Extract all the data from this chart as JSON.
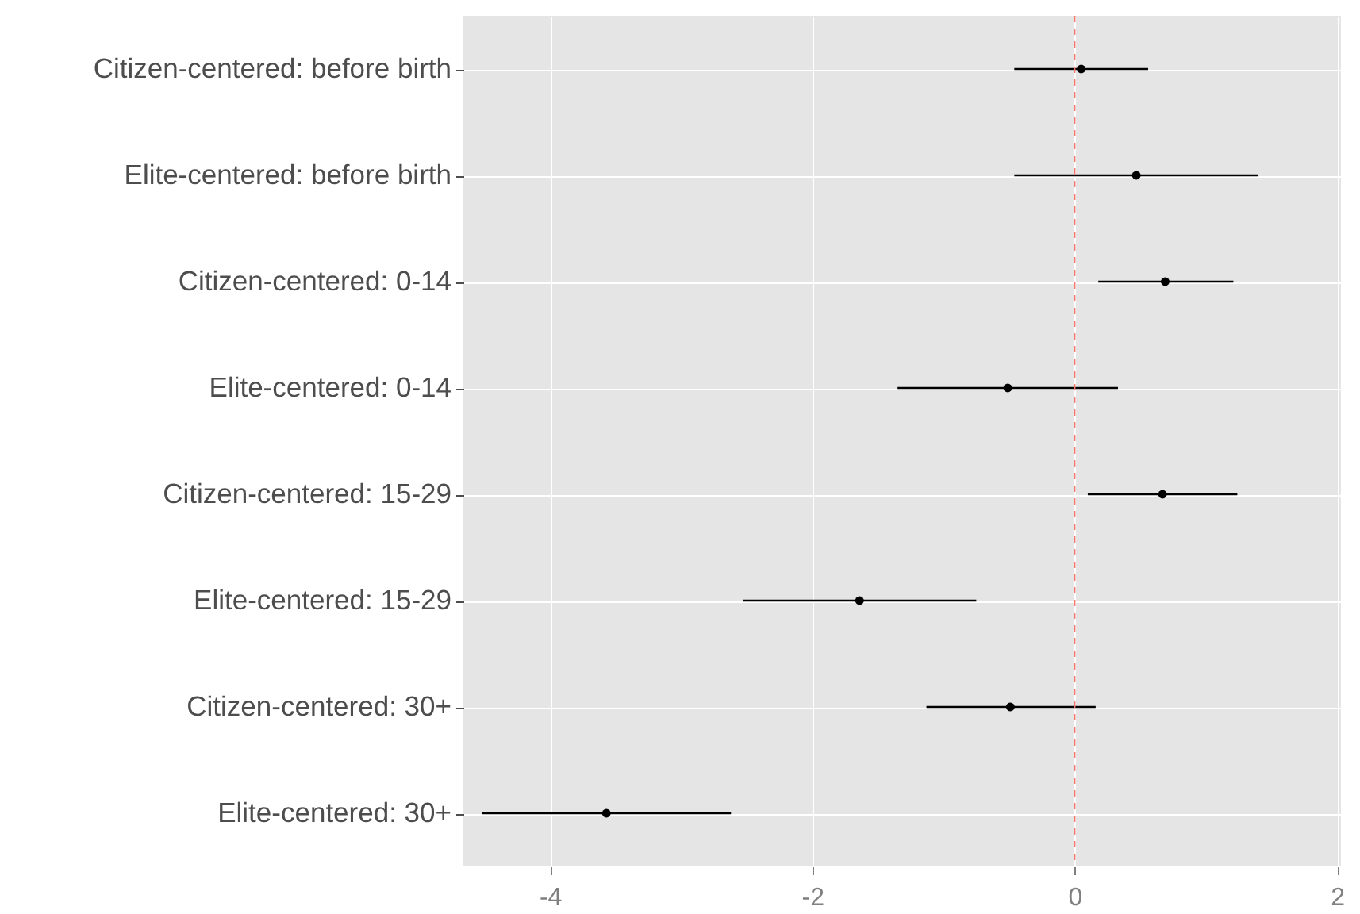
{
  "chart_data": {
    "type": "scatter",
    "orientation": "horizontal",
    "categories": [
      "Citizen-centered: before birth",
      "Elite-centered: before birth",
      "Citizen-centered: 0-14",
      "Elite-centered: 0-14",
      "Citizen-centered: 15-29",
      "Elite-centered: 15-29",
      "Citizen-centered: 30+",
      "Elite-centered: 30+"
    ],
    "values": [
      0.05,
      0.47,
      0.69,
      -0.51,
      0.67,
      -1.64,
      -0.49,
      -3.57
    ],
    "errors": [
      [
        -0.46,
        0.56
      ],
      [
        -0.46,
        1.4
      ],
      [
        0.18,
        1.21
      ],
      [
        -1.35,
        0.33
      ],
      [
        0.1,
        1.24
      ],
      [
        -2.53,
        -0.75
      ],
      [
        -1.13,
        0.16
      ],
      [
        -4.52,
        -2.62
      ]
    ],
    "color": "#000000",
    "marker": "circle",
    "xlim": [
      -4.66,
      2.03
    ],
    "xticks": [
      -4,
      -2,
      0,
      2
    ],
    "grid": true,
    "ref_lines": [
      {
        "axis": "x",
        "value": 0,
        "color": "#f8766d",
        "line_style": "dashed"
      }
    ]
  }
}
